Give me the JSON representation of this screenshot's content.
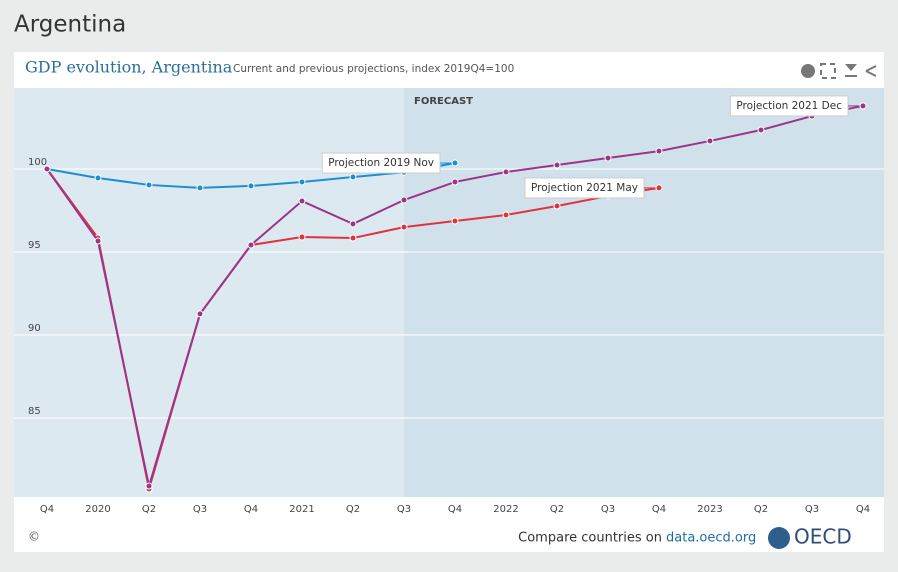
{
  "page_title": "Argentina",
  "chart_data": {
    "type": "line",
    "title": "GDP evolution, Argentina",
    "subtitle": "Current and previous projections, index 2019Q4=100",
    "categories": [
      "Q4",
      "2020",
      "Q2",
      "Q3",
      "Q4",
      "2021",
      "Q2",
      "Q3",
      "Q4",
      "2022",
      "Q2",
      "Q3",
      "Q4",
      "2023",
      "Q2",
      "Q3",
      "Q4"
    ],
    "forecast": {
      "label": "FORECAST",
      "start": 7
    },
    "series": [
      {
        "name": "Projection 2019 Nov",
        "color": "#1c8fd0",
        "values": [
          100,
          99.46,
          99.04,
          98.86,
          98.98,
          99.22,
          99.52,
          99.8,
          100.36,
          null,
          null,
          null,
          null,
          null,
          null,
          null,
          null
        ]
      },
      {
        "name": "Projection 2021 May",
        "color": "#e0333f",
        "values": [
          100,
          95.84,
          80.72,
          91.27,
          95.42,
          95.9,
          95.84,
          96.5,
          96.87,
          97.23,
          97.77,
          98.37,
          98.86,
          null,
          null,
          null,
          null
        ]
      },
      {
        "name": "Projection 2021 Dec",
        "color": "#9b3586",
        "values": [
          100,
          95.66,
          80.9,
          91.27,
          95.42,
          98.07,
          96.69,
          98.13,
          99.22,
          99.82,
          100.24,
          100.66,
          101.08,
          101.69,
          102.35,
          103.19,
          103.8
        ]
      }
    ],
    "ylim": [
      80.24,
      104.88
    ],
    "yticks": [
      85,
      90,
      95,
      100
    ],
    "grid": true
  },
  "footer": {
    "copyright": "©",
    "compare": "Compare countries on",
    "link": "data.oecd.org",
    "logo": "OECD"
  }
}
